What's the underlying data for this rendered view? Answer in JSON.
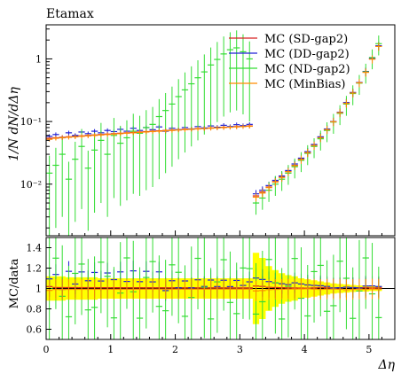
{
  "chart_data": {
    "type": "scatter",
    "title": "Etamax",
    "xlabel": "Δη",
    "ylabel": "1/N dN/dΔη",
    "ratio_ylabel": "MC/data",
    "xlim": [
      0,
      5.4
    ],
    "ylim": [
      0.0015,
      3.5
    ],
    "yscale": "log",
    "ratio_ylim": [
      0.5,
      1.5
    ],
    "x_ticks": [
      "0",
      "1",
      "2",
      "3",
      "4",
      "5"
    ],
    "y_ticks": [
      "10⁻²",
      "10⁻¹",
      "1"
    ],
    "ratio_ticks": [
      "0.6",
      "0.8",
      "1",
      "1.2",
      "1.4"
    ],
    "legend_position": "top-right",
    "series": [
      {
        "name": "MC (SD-gap2)",
        "color": "#d62020",
        "x": [
          0.05,
          0.15,
          0.25,
          0.35,
          0.45,
          0.55,
          0.65,
          0.75,
          0.85,
          0.95,
          1.05,
          1.15,
          1.25,
          1.35,
          1.45,
          1.55,
          1.65,
          1.75,
          1.85,
          1.95,
          2.05,
          2.15,
          2.25,
          2.35,
          2.45,
          2.55,
          2.65,
          2.75,
          2.85,
          2.95,
          3.05,
          3.15,
          3.25,
          3.35,
          3.45,
          3.55,
          3.65,
          3.75,
          3.85,
          3.95,
          4.05,
          4.15,
          4.25,
          4.35,
          4.45,
          4.55,
          4.65,
          4.75,
          4.85,
          4.95,
          5.05,
          5.15
        ],
        "y": [
          0.054,
          0.055,
          0.056,
          0.057,
          0.058,
          0.059,
          0.06,
          0.061,
          0.062,
          0.063,
          0.064,
          0.065,
          0.066,
          0.067,
          0.068,
          0.069,
          0.07,
          0.071,
          0.072,
          0.073,
          0.074,
          0.075,
          0.076,
          0.077,
          0.078,
          0.079,
          0.08,
          0.081,
          0.082,
          0.083,
          0.084,
          0.085,
          0.0065,
          0.0075,
          0.009,
          0.011,
          0.013,
          0.016,
          0.02,
          0.025,
          0.032,
          0.042,
          0.056,
          0.075,
          0.1,
          0.14,
          0.2,
          0.29,
          0.42,
          0.62,
          1.0,
          1.6
        ]
      },
      {
        "name": "MC (DD-gap2)",
        "color": "#2020d6",
        "x": [
          0.05,
          0.15,
          0.25,
          0.35,
          0.45,
          0.55,
          0.65,
          0.75,
          0.85,
          0.95,
          1.05,
          1.15,
          1.25,
          1.35,
          1.45,
          1.55,
          1.65,
          1.75,
          1.85,
          1.95,
          2.05,
          2.15,
          2.25,
          2.35,
          2.45,
          2.55,
          2.65,
          2.75,
          2.85,
          2.95,
          3.05,
          3.15,
          3.25,
          3.35,
          3.45,
          3.55,
          3.65,
          3.75,
          3.85,
          3.95,
          4.05,
          4.15,
          4.25,
          4.35,
          4.45,
          4.55,
          4.65,
          4.75,
          4.85,
          4.95,
          5.05,
          5.15
        ],
        "y": [
          0.058,
          0.062,
          0.055,
          0.066,
          0.06,
          0.068,
          0.064,
          0.07,
          0.066,
          0.072,
          0.069,
          0.075,
          0.07,
          0.078,
          0.072,
          0.08,
          0.074,
          0.082,
          0.07,
          0.078,
          0.074,
          0.08,
          0.076,
          0.083,
          0.079,
          0.085,
          0.081,
          0.087,
          0.083,
          0.089,
          0.086,
          0.09,
          0.007,
          0.008,
          0.0095,
          0.0115,
          0.0135,
          0.0165,
          0.021,
          0.026,
          0.033,
          0.043,
          0.057,
          0.076,
          0.1,
          0.14,
          0.2,
          0.29,
          0.42,
          0.63,
          1.02,
          1.62
        ]
      },
      {
        "name": "MC (ND-gap2)",
        "color": "#33dd33",
        "x": [
          0.05,
          0.15,
          0.25,
          0.35,
          0.45,
          0.55,
          0.65,
          0.75,
          0.85,
          0.95,
          1.05,
          1.15,
          1.25,
          1.35,
          1.45,
          1.55,
          1.65,
          1.75,
          1.85,
          1.95,
          2.05,
          2.15,
          2.25,
          2.35,
          2.45,
          2.55,
          2.65,
          2.75,
          2.85,
          2.95,
          3.05,
          3.15,
          3.25,
          3.35,
          3.45,
          3.55,
          3.65,
          3.75,
          3.85,
          3.95,
          4.05,
          4.15,
          4.25,
          4.35,
          4.45,
          4.55,
          4.65,
          4.75,
          4.85,
          4.95,
          5.05,
          5.15
        ],
        "y": [
          0.015,
          0.02,
          0.03,
          0.012,
          0.025,
          0.04,
          0.018,
          0.035,
          0.05,
          0.03,
          0.06,
          0.045,
          0.055,
          0.07,
          0.065,
          0.08,
          0.09,
          0.12,
          0.15,
          0.19,
          0.25,
          0.32,
          0.4,
          0.5,
          0.62,
          0.8,
          0.98,
          1.2,
          1.4,
          1.5,
          1.3,
          1.0,
          0.005,
          0.006,
          0.008,
          0.01,
          0.012,
          0.015,
          0.019,
          0.024,
          0.031,
          0.04,
          0.053,
          0.072,
          0.098,
          0.135,
          0.19,
          0.28,
          0.41,
          0.62,
          1.05,
          1.75
        ]
      },
      {
        "name": "MC (MinBias)",
        "color": "#ff8c00",
        "x": [
          0.05,
          0.15,
          0.25,
          0.35,
          0.45,
          0.55,
          0.65,
          0.75,
          0.85,
          0.95,
          1.05,
          1.15,
          1.25,
          1.35,
          1.45,
          1.55,
          1.65,
          1.75,
          1.85,
          1.95,
          2.05,
          2.15,
          2.25,
          2.35,
          2.45,
          2.55,
          2.65,
          2.75,
          2.85,
          2.95,
          3.05,
          3.15,
          3.25,
          3.35,
          3.45,
          3.55,
          3.65,
          3.75,
          3.85,
          3.95,
          4.05,
          4.15,
          4.25,
          4.35,
          4.45,
          4.55,
          4.65,
          4.75,
          4.85,
          4.95,
          5.05,
          5.15
        ],
        "y": [
          0.052,
          0.054,
          0.055,
          0.056,
          0.057,
          0.058,
          0.059,
          0.06,
          0.061,
          0.062,
          0.063,
          0.064,
          0.065,
          0.066,
          0.067,
          0.068,
          0.069,
          0.07,
          0.071,
          0.072,
          0.073,
          0.074,
          0.075,
          0.076,
          0.077,
          0.078,
          0.079,
          0.08,
          0.081,
          0.082,
          0.083,
          0.084,
          0.0062,
          0.0072,
          0.0088,
          0.0108,
          0.0128,
          0.0158,
          0.0198,
          0.0248,
          0.0318,
          0.0415,
          0.055,
          0.074,
          0.099,
          0.138,
          0.195,
          0.285,
          0.415,
          0.61,
          0.99,
          1.58
        ]
      }
    ]
  }
}
